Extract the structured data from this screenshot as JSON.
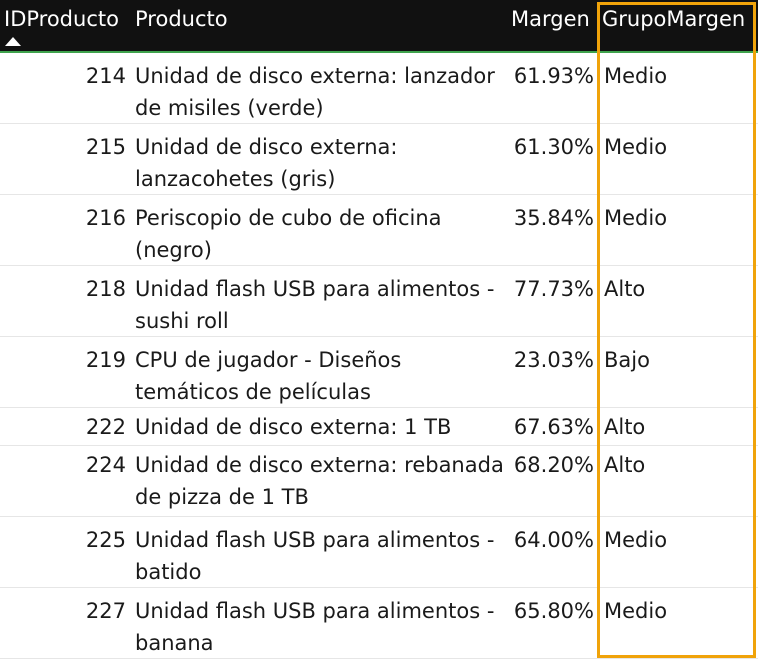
{
  "table": {
    "columns": {
      "id": "IDProducto",
      "product": "Producto",
      "margin": "Margen",
      "group": "GrupoMargen"
    },
    "rows": [
      {
        "id": "214",
        "product": "Unidad de disco externa: lanzador de misiles (verde)",
        "margin": "61.93%",
        "group": "Medio"
      },
      {
        "id": "215",
        "product": "Unidad de disco externa: lanzacohetes (gris)",
        "margin": "61.30%",
        "group": "Medio"
      },
      {
        "id": "216",
        "product": "Periscopio de cubo de oficina (negro)",
        "margin": "35.84%",
        "group": "Medio"
      },
      {
        "id": "218",
        "product": "Unidad flash USB para alimentos - sushi roll",
        "margin": "77.73%",
        "group": "Alto"
      },
      {
        "id": "219",
        "product": "CPU de jugador - Diseños temáticos de películas",
        "margin": "23.03%",
        "group": "Bajo"
      },
      {
        "id": "222",
        "product": "Unidad de disco externa: 1 TB",
        "margin": "67.63%",
        "group": "Alto"
      },
      {
        "id": "224",
        "product": "Unidad de disco externa: rebanada de pizza de 1 TB",
        "margin": "68.20%",
        "group": "Alto"
      },
      {
        "id": "225",
        "product": "Unidad flash USB para alimentos - batido",
        "margin": "64.00%",
        "group": "Medio"
      },
      {
        "id": "227",
        "product": "Unidad flash USB para alimentos - banana",
        "margin": "65.80%",
        "group": "Medio"
      }
    ]
  },
  "colors": {
    "header_bg": "#111111",
    "header_underline": "#3fa34d",
    "highlight": "#f0a30a"
  }
}
